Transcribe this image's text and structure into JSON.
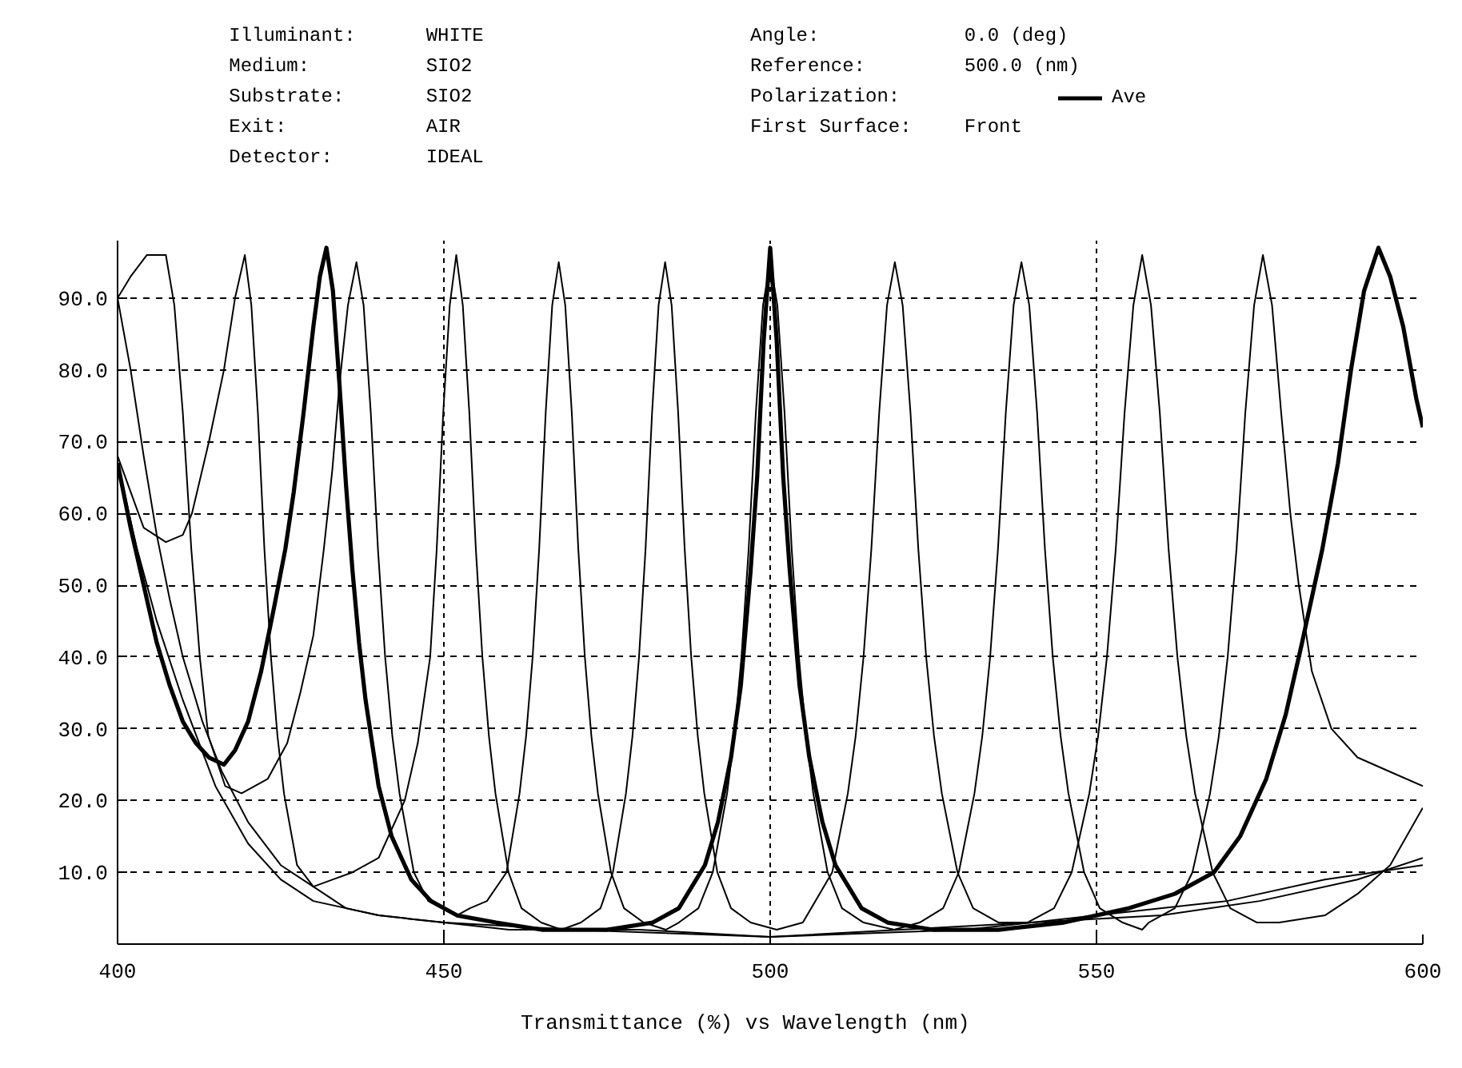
{
  "chart_data": {
    "type": "line",
    "xlabel": "Transmittance (%)   vs   Wavelength (nm)",
    "legend_title": "Polarization:",
    "legend": "top",
    "annotations": [
      "Illuminant:",
      "WHITE",
      "Medium:",
      "SIO2",
      "Substrate:",
      "SIO2",
      "Exit:",
      "AIR",
      "Detector:",
      "IDEAL",
      "Angle:",
      "0.0 (deg)",
      "Reference:",
      "500.0 (nm)",
      "First Surface:",
      "Front"
    ],
    "xlim": [
      400,
      600
    ],
    "xticks": [
      400,
      450,
      500,
      550,
      600
    ],
    "ylim": [
      0,
      98
    ],
    "yticks": [
      {
        "value": 10,
        "label": "10.0"
      },
      {
        "value": 20,
        "label": "20.0"
      },
      {
        "value": 30,
        "label": "30.0"
      },
      {
        "value": 40,
        "label": "40.0"
      },
      {
        "value": 50,
        "label": "50.0"
      },
      {
        "value": 60,
        "label": "60.0"
      },
      {
        "value": 70,
        "label": "70.0"
      },
      {
        "value": 80,
        "label": "80.0"
      },
      {
        "value": 90,
        "label": "90.0"
      }
    ],
    "grid": true,
    "line_style": "solid",
    "series": [
      {
        "color": "#000000",
        "x": [
          400,
          402,
          404.5,
          407.4,
          408.7,
          410,
          411.3,
          412.6,
          413.9,
          416.5,
          419,
          421,
          423,
          426,
          428,
          430,
          431.6,
          432.9,
          434,
          435.3,
          436.6,
          437.7,
          438.8,
          439.9,
          441,
          442.1,
          443.2,
          445.4,
          447.6,
          450,
          452,
          454,
          456.6,
          459.6,
          461.6,
          462.6,
          463.6,
          464.6,
          465.6,
          466.6,
          467.6,
          468.6,
          469.6,
          470.6,
          471.6,
          472.6,
          473.6,
          475.6,
          477.6,
          480.6,
          484,
          486,
          489,
          491.2,
          493.4,
          494.5,
          495.6,
          496.7,
          497.8,
          498.9,
          500,
          501.1,
          502.2,
          503.3,
          504.4,
          505.5,
          506.6,
          508.8,
          511,
          514.3,
          519,
          522.9,
          526.5,
          528.9,
          531.3,
          532.5,
          533.7,
          534.9,
          536.1,
          537.3,
          538.5,
          539.7,
          540.9,
          542.1,
          543.3,
          544.5,
          545.7,
          548.1,
          550.5,
          554,
          557,
          558,
          562,
          564.7,
          567.4,
          568.75,
          570.1,
          571.45,
          572.8,
          574.15,
          575.5,
          576.9,
          578.3,
          579.7,
          581,
          583,
          586,
          590,
          595,
          600
        ],
        "values": [
          90,
          93,
          96,
          96,
          89,
          74,
          55,
          40,
          29,
          22,
          21,
          22,
          23,
          28,
          35,
          43,
          55,
          66,
          78,
          89,
          95,
          89,
          74,
          55,
          40,
          29,
          21,
          10,
          6,
          5,
          4,
          5,
          6,
          10,
          21,
          29,
          40,
          55,
          74,
          89,
          95,
          89,
          74,
          55,
          40,
          29,
          21,
          10,
          5,
          3,
          2,
          3,
          5,
          10,
          21,
          29,
          40,
          55,
          74,
          89,
          95,
          89,
          74,
          55,
          40,
          29,
          21,
          10,
          5,
          3,
          2,
          3,
          5,
          10,
          21,
          29,
          40,
          55,
          74,
          89,
          95,
          89,
          74,
          55,
          40,
          29,
          21,
          10,
          5,
          3,
          2,
          3,
          5,
          10,
          21,
          29,
          40,
          55,
          74,
          89,
          96,
          89,
          74,
          60,
          50,
          38,
          30,
          26,
          24,
          22
        ]
      },
      {
        "color": "#000000",
        "x": [
          400,
          404,
          407.4,
          410,
          411.4,
          414,
          416.3,
          418,
          419.5,
          420.5,
          421.5,
          422.5,
          423.5,
          424.5,
          425.5,
          427.5,
          430,
          433,
          436,
          440,
          444,
          446,
          447.9,
          448.9,
          449.9,
          450.9,
          451.9,
          452.9,
          453.9,
          454.9,
          455.9,
          456.9,
          457.9,
          459.9,
          461.9,
          464.9,
          468,
          471,
          474,
          475.9,
          477.9,
          478.9,
          479.9,
          480.9,
          481.9,
          482.9,
          483.9,
          484.9,
          485.9,
          486.9,
          487.9,
          488.9,
          489.9,
          491.9,
          494,
          497,
          501,
          505,
          509.5,
          511.9,
          513.1,
          514.3,
          515.5,
          516.7,
          517.9,
          519.1,
          520.3,
          521.5,
          522.7,
          523.9,
          525.1,
          526.3,
          528.7,
          531.1,
          535,
          539.4,
          543.5,
          546.2,
          548.9,
          550.25,
          551.6,
          552.95,
          554.3,
          555.65,
          557,
          558.35,
          559.7,
          561.05,
          562.4,
          563.75,
          565.1,
          567.8,
          570.5,
          574.6,
          578,
          585,
          590,
          595,
          600
        ],
        "values": [
          68,
          58,
          56,
          57,
          60,
          70,
          80,
          90,
          96,
          89,
          74,
          55,
          40,
          29,
          21,
          11,
          8,
          9,
          10,
          12,
          20,
          28,
          40,
          55,
          74,
          89,
          96,
          89,
          74,
          55,
          40,
          29,
          21,
          10,
          5,
          3,
          2,
          3,
          5,
          10,
          21,
          29,
          40,
          55,
          74,
          89,
          95,
          89,
          74,
          55,
          40,
          29,
          21,
          10,
          5,
          3,
          2,
          3,
          10,
          21,
          29,
          40,
          55,
          74,
          89,
          95,
          89,
          74,
          55,
          40,
          29,
          21,
          10,
          5,
          3,
          3,
          5,
          10,
          21,
          29,
          40,
          55,
          74,
          89,
          96,
          89,
          74,
          55,
          40,
          29,
          21,
          10,
          5,
          3,
          3,
          4,
          7,
          11,
          19
        ]
      },
      {
        "color": "#000000",
        "x": [
          400,
          402,
          404,
          406,
          408,
          410,
          413,
          416,
          420,
          425,
          430,
          435,
          440,
          450,
          460,
          480,
          500,
          520,
          540,
          560,
          575,
          590,
          600
        ],
        "values": [
          90,
          80,
          68,
          57,
          48,
          40,
          31,
          24,
          17,
          11,
          8,
          5,
          4,
          3,
          2,
          2,
          1,
          2,
          3,
          4,
          6,
          9,
          12
        ]
      },
      {
        "color": "#000000",
        "x": [
          400,
          403,
          406,
          410,
          415,
          420,
          425,
          430,
          440,
          450,
          470,
          500,
          530,
          550,
          570,
          585,
          600
        ],
        "values": [
          67,
          55,
          45,
          34,
          22,
          14,
          9,
          6,
          4,
          3,
          2,
          1,
          2,
          4,
          6,
          9,
          11
        ]
      },
      {
        "name": "Ave",
        "color": "#000000",
        "x": [
          400,
          402,
          404,
          406,
          408,
          410,
          412,
          414,
          416.3,
          418,
          420,
          422,
          424,
          425.7,
          427,
          428.5,
          430,
          431,
          432,
          433,
          434,
          435,
          436,
          437,
          438,
          440,
          442,
          445,
          448,
          452,
          458,
          465,
          475,
          482,
          486,
          488,
          490,
          492,
          494,
          495.5,
          497,
          498,
          499,
          500,
          501,
          502,
          503,
          504.5,
          506,
          508,
          510,
          512,
          514,
          518,
          525,
          535,
          545,
          555,
          562,
          568,
          572,
          576,
          579,
          581.5,
          584.6,
          587,
          589,
          591,
          593.2,
          595,
          597,
          599,
          600
        ],
        "values": [
          67,
          58,
          50,
          42,
          36,
          31,
          28,
          26,
          25,
          27,
          31,
          38,
          47,
          55,
          63,
          74,
          86,
          93,
          97,
          91,
          78,
          64,
          52,
          42,
          34,
          22,
          15,
          9,
          6,
          4,
          3,
          2,
          2,
          3,
          5,
          8,
          11,
          17,
          26,
          36,
          52,
          65,
          84,
          97,
          84,
          65,
          52,
          36,
          26,
          17,
          11,
          8,
          5,
          3,
          2,
          2,
          3,
          5,
          7,
          10,
          15,
          23,
          32,
          42,
          55,
          67,
          80,
          91,
          97,
          93,
          86,
          76,
          72
        ]
      }
    ]
  }
}
